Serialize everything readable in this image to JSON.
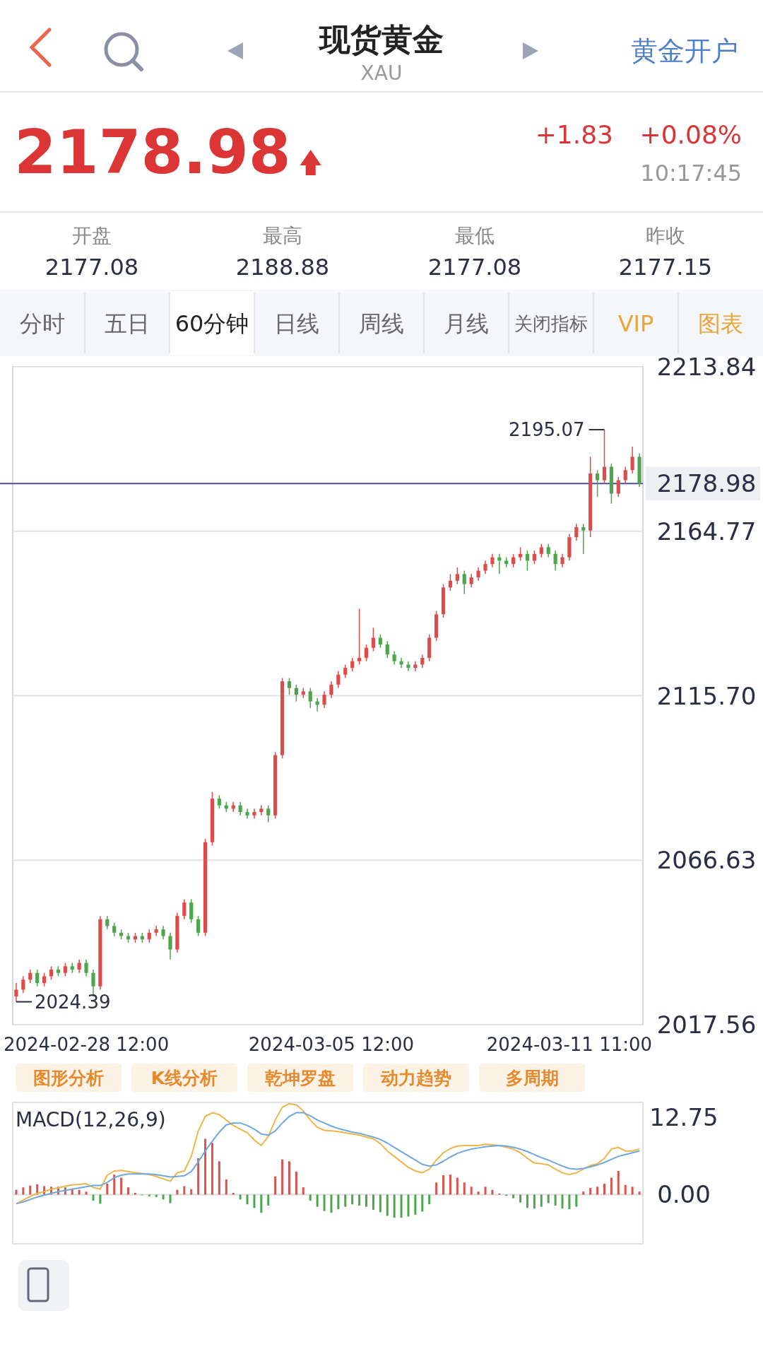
{
  "chart_data": [
    {
      "type": "other",
      "title": "现货黄金",
      "subtitle": "XAU",
      "annotations": [
        "黄金开户",
        "2178.98",
        "+1.83",
        "+0.08%",
        "10:17:45",
        "开盘",
        "2177.08",
        "最高",
        "2188.88",
        "最低",
        "2177.08",
        "昨收",
        "2177.15",
        "分时",
        "五日",
        "60分钟",
        "日线",
        "周线",
        "月线",
        "关闭指标",
        "VIP",
        "图表",
        "图形分析",
        "K线分析",
        "乾坤罗盘",
        "动力趋势",
        "多周期"
      ]
    },
    {
      "type": "candlestick",
      "categories": [
        null,
        null,
        null,
        null,
        null,
        null,
        null,
        null,
        null,
        null,
        "2024-02-28 12:00",
        null,
        null,
        null,
        null,
        null,
        null,
        null,
        null,
        null,
        null,
        null,
        null,
        null,
        null,
        null,
        null,
        null,
        null,
        null,
        null,
        null,
        null,
        null,
        null,
        null,
        null,
        null,
        null,
        null,
        null,
        null,
        null,
        null,
        null,
        "2024-03-05 12:00",
        null,
        null,
        null,
        null,
        null,
        null,
        null,
        null,
        null,
        null,
        null,
        null,
        null,
        null,
        null,
        null,
        null,
        null,
        null,
        null,
        null,
        null,
        null,
        null,
        null,
        null,
        null,
        null,
        null,
        null,
        null,
        null,
        null,
        "2024-03-11 11:00",
        null,
        null,
        null,
        null,
        null,
        null,
        null,
        null,
        null,
        null
      ],
      "ohlc": [
        [
          2026,
          2030,
          2024.39,
          2028
        ],
        [
          2028,
          2032,
          2027,
          2031
        ],
        [
          2031,
          2034,
          2030,
          2033
        ],
        [
          2033,
          2034,
          2029,
          2030
        ],
        [
          2030,
          2033,
          2029,
          2032
        ],
        [
          2032,
          2035,
          2031,
          2034
        ],
        [
          2034,
          2035,
          2032,
          2033
        ],
        [
          2033,
          2036,
          2032,
          2035
        ],
        [
          2035,
          2036,
          2033,
          2034
        ],
        [
          2034,
          2037,
          2033,
          2036
        ],
        [
          2036,
          2037,
          2032,
          2033
        ],
        [
          2033,
          2034,
          2026,
          2029
        ],
        [
          2029,
          2050,
          2028,
          2049
        ],
        [
          2049,
          2050,
          2046,
          2047
        ],
        [
          2047,
          2048,
          2044,
          2045
        ],
        [
          2045,
          2046,
          2043,
          2044
        ],
        [
          2044,
          2045,
          2042,
          2043
        ],
        [
          2043,
          2045,
          2042,
          2044
        ],
        [
          2044,
          2045,
          2042,
          2043
        ],
        [
          2043,
          2046,
          2042,
          2045
        ],
        [
          2045,
          2047,
          2044,
          2046
        ],
        [
          2046,
          2047,
          2043,
          2044
        ],
        [
          2044,
          2045,
          2037,
          2040
        ],
        [
          2040,
          2051,
          2039,
          2050
        ],
        [
          2050,
          2055,
          2049,
          2054
        ],
        [
          2054,
          2055,
          2048,
          2049
        ],
        [
          2049,
          2050,
          2044,
          2045
        ],
        [
          2045,
          2073,
          2044,
          2072
        ],
        [
          2072,
          2087,
          2071,
          2085
        ],
        [
          2085,
          2086,
          2082,
          2083
        ],
        [
          2083,
          2084,
          2081,
          2082
        ],
        [
          2082,
          2084,
          2081,
          2083
        ],
        [
          2083,
          2084,
          2080,
          2081
        ],
        [
          2081,
          2082,
          2079,
          2080
        ],
        [
          2080,
          2082,
          2079,
          2081
        ],
        [
          2081,
          2083,
          2080,
          2082
        ],
        [
          2082,
          2083,
          2078,
          2080
        ],
        [
          2080,
          2099,
          2079,
          2098
        ],
        [
          2098,
          2121,
          2097,
          2120
        ],
        [
          2120,
          2121,
          2116,
          2118
        ],
        [
          2118,
          2119,
          2114,
          2116
        ],
        [
          2116,
          2118,
          2115,
          2117
        ],
        [
          2117,
          2118,
          2112,
          2114
        ],
        [
          2114,
          2115,
          2111,
          2113
        ],
        [
          2113,
          2117,
          2112,
          2116
        ],
        [
          2116,
          2120,
          2115,
          2119
        ],
        [
          2119,
          2123,
          2118,
          2122
        ],
        [
          2122,
          2125,
          2121,
          2124
        ],
        [
          2124,
          2127,
          2123,
          2126
        ],
        [
          2126,
          2141.7,
          2125,
          2127
        ],
        [
          2127,
          2131,
          2126,
          2130
        ],
        [
          2130,
          2136,
          2129,
          2133
        ],
        [
          2133,
          2134,
          2130,
          2131
        ],
        [
          2131,
          2132,
          2127,
          2128
        ],
        [
          2128,
          2129,
          2125,
          2126
        ],
        [
          2126,
          2127,
          2124,
          2125
        ],
        [
          2125,
          2126,
          2123,
          2124
        ],
        [
          2124,
          2126,
          2123,
          2125
        ],
        [
          2125,
          2128,
          2124,
          2127
        ],
        [
          2127,
          2134,
          2126,
          2133
        ],
        [
          2133,
          2141,
          2132,
          2140
        ],
        [
          2140,
          2149,
          2139,
          2148
        ],
        [
          2148,
          2152,
          2147,
          2150
        ],
        [
          2150,
          2154,
          2149,
          2152
        ],
        [
          2152,
          2153,
          2146,
          2149
        ],
        [
          2149,
          2152,
          2148,
          2151
        ],
        [
          2151,
          2154,
          2150,
          2153
        ],
        [
          2153,
          2156,
          2152,
          2155
        ],
        [
          2155,
          2158,
          2154,
          2157
        ],
        [
          2157,
          2158,
          2152,
          2156
        ],
        [
          2156,
          2157,
          2154,
          2155
        ],
        [
          2155,
          2158,
          2154,
          2157
        ],
        [
          2157,
          2160,
          2156,
          2158
        ],
        [
          2158,
          2159,
          2153,
          2156
        ],
        [
          2156,
          2159,
          2155,
          2158
        ],
        [
          2158,
          2161,
          2157,
          2160
        ],
        [
          2160,
          2161,
          2157,
          2158
        ],
        [
          2158,
          2159,
          2153,
          2155
        ],
        [
          2155,
          2158,
          2154,
          2157
        ],
        [
          2157,
          2164,
          2156,
          2163
        ],
        [
          2163,
          2167,
          2162,
          2166
        ],
        [
          2166,
          2167,
          2158,
          2165
        ],
        [
          2165,
          2187,
          2163,
          2182
        ],
        [
          2182,
          2183,
          2175,
          2180
        ],
        [
          2180,
          2195.07,
          2179,
          2184
        ],
        [
          2184,
          2185,
          2173,
          2176
        ],
        [
          2176,
          2181,
          2175,
          2180
        ],
        [
          2180,
          2184,
          2179,
          2183
        ],
        [
          2183,
          2190,
          2182,
          2187
        ],
        [
          2187,
          2188,
          2178,
          2178.98
        ]
      ],
      "colors": [
        "#dd4b4b",
        "#dd4b4b",
        "#dd4b4b",
        "#4ca64c",
        "#dd4b4b",
        "#dd4b4b",
        "#4ca64c",
        "#dd4b4b",
        "#4ca64c",
        "#dd4b4b",
        "#4ca64c",
        "#4ca64c",
        "#dd4b4b",
        "#4ca64c",
        "#4ca64c",
        "#4ca64c",
        "#4ca64c",
        "#dd4b4b",
        "#4ca64c",
        "#dd4b4b",
        "#dd4b4b",
        "#4ca64c",
        "#4ca64c",
        "#dd4b4b",
        "#dd4b4b",
        "#4ca64c",
        "#4ca64c",
        "#dd4b4b",
        "#dd4b4b",
        "#4ca64c",
        "#4ca64c",
        "#dd4b4b",
        "#4ca64c",
        "#4ca64c",
        "#dd4b4b",
        "#dd4b4b",
        "#4ca64c",
        "#dd4b4b",
        "#dd4b4b",
        "#4ca64c",
        "#4ca64c",
        "#dd4b4b",
        "#4ca64c",
        "#4ca64c",
        "#dd4b4b",
        "#dd4b4b",
        "#dd4b4b",
        "#dd4b4b",
        "#dd4b4b",
        "#dd4b4b",
        "#dd4b4b",
        "#dd4b4b",
        "#4ca64c",
        "#4ca64c",
        "#4ca64c",
        "#4ca64c",
        "#4ca64c",
        "#dd4b4b",
        "#dd4b4b",
        "#dd4b4b",
        "#dd4b4b",
        "#dd4b4b",
        "#dd4b4b",
        "#dd4b4b",
        "#4ca64c",
        "#dd4b4b",
        "#dd4b4b",
        "#dd4b4b",
        "#dd4b4b",
        "#4ca64c",
        "#4ca64c",
        "#dd4b4b",
        "#dd4b4b",
        "#4ca64c",
        "#dd4b4b",
        "#dd4b4b",
        "#4ca64c",
        "#4ca64c",
        "#dd4b4b",
        "#dd4b4b",
        "#dd4b4b",
        "#4ca64c",
        "#dd4b4b",
        "#4ca64c",
        "#dd4b4b",
        "#4ca64c",
        "#dd4b4b",
        "#dd4b4b",
        "#dd4b4b",
        "#4ca64c"
      ],
      "ylim": [
        2017.56,
        2213.84
      ],
      "yticks": [
        {
          "value": 2017.56,
          "label": "2017.56"
        },
        2066.63,
        {
          "value": 2115.7,
          "label": "2115.70"
        },
        2164.77,
        2213.84
      ],
      "grid": "y",
      "ref_lines": [
        {
          "axis": "y",
          "value": 2178.98,
          "label": "2178.98",
          "color": "#4b4f9a"
        }
      ],
      "annotations": [
        "2195.07",
        "2024.39"
      ]
    },
    {
      "type": "bar",
      "title": "MACD(12,26,9)",
      "categories": [
        null,
        null,
        null,
        null,
        null,
        null,
        null,
        null,
        null,
        null,
        null,
        null,
        null,
        null,
        null,
        null,
        null,
        null,
        null,
        null,
        null,
        null,
        null,
        null,
        null,
        null,
        null,
        null,
        null,
        null,
        null,
        null,
        null,
        null,
        null,
        null,
        null,
        null,
        null,
        null,
        null,
        null,
        null,
        null,
        null,
        null,
        null,
        null,
        null,
        null,
        null,
        null,
        null,
        null,
        null,
        null,
        null,
        null,
        null,
        null,
        null,
        null,
        null,
        null,
        null,
        null,
        null,
        null,
        null,
        null,
        null,
        null,
        null,
        null,
        null,
        null,
        null,
        null,
        null,
        null,
        null,
        null,
        null,
        null,
        null,
        null,
        null,
        null,
        null,
        null
      ],
      "ylim": [
        -8.1,
        15.2
      ],
      "yticks": [
        {
          "value": 0,
          "label": "0.00"
        },
        12.75
      ],
      "tick_labels": "y",
      "ref_lines": [
        {
          "axis": "y",
          "value": 0,
          "color": "#dddddd"
        }
      ],
      "series": [
        {
          "type": "bar",
          "values": [
            0.8,
            1.2,
            1.5,
            1.7,
            1.4,
            1.3,
            1.3,
            1.2,
            1.0,
            0.8,
            0.5,
            -1.0,
            -1.5,
            1.8,
            3.3,
            2.8,
            1.2,
            0.3,
            -0.1,
            -0.3,
            -0.4,
            -0.8,
            -1.4,
            0.8,
            1.4,
            0.9,
            6.0,
            9.2,
            8.5,
            5.5,
            2.5,
            0.3,
            -0.8,
            -1.6,
            -2.2,
            -3.0,
            -1.8,
            3.0,
            5.8,
            5.5,
            3.8,
            1.2,
            -1.0,
            -2.0,
            -2.7,
            -3.0,
            -2.4,
            -2.0,
            -1.6,
            -1.8,
            -2.0,
            -2.5,
            -2.9,
            -3.5,
            -3.8,
            -3.8,
            -3.6,
            -3.3,
            -2.8,
            -1.6,
            2.0,
            3.2,
            3.3,
            2.8,
            2.0,
            1.3,
            0.5,
            1.3,
            0.8,
            0.2,
            -0.2,
            -0.6,
            -1.3,
            -2.2,
            -2.3,
            -2.0,
            -1.4,
            -1.8,
            -2.3,
            -2.4,
            -2.0,
            0.5,
            1.1,
            1.3,
            1.8,
            2.8,
            3.9,
            1.6,
            1.3,
            0.5
          ],
          "colors": [
            "#d9534f",
            "#d9534f",
            "#d9534f",
            "#d9534f",
            "#d9534f",
            "#d9534f",
            "#d9534f",
            "#d9534f",
            "#d9534f",
            "#d9534f",
            "#d9534f",
            "#4ca64c",
            "#4ca64c",
            "#d9534f",
            "#d9534f",
            "#d9534f",
            "#d9534f",
            "#d9534f",
            "#4ca64c",
            "#4ca64c",
            "#4ca64c",
            "#4ca64c",
            "#4ca64c",
            "#d9534f",
            "#d9534f",
            "#d9534f",
            "#d9534f",
            "#d9534f",
            "#d9534f",
            "#d9534f",
            "#d9534f",
            "#d9534f",
            "#4ca64c",
            "#4ca64c",
            "#4ca64c",
            "#4ca64c",
            "#4ca64c",
            "#d9534f",
            "#d9534f",
            "#d9534f",
            "#d9534f",
            "#d9534f",
            "#4ca64c",
            "#4ca64c",
            "#4ca64c",
            "#4ca64c",
            "#4ca64c",
            "#4ca64c",
            "#4ca64c",
            "#4ca64c",
            "#4ca64c",
            "#4ca64c",
            "#4ca64c",
            "#4ca64c",
            "#4ca64c",
            "#4ca64c",
            "#4ca64c",
            "#4ca64c",
            "#4ca64c",
            "#4ca64c",
            "#d9534f",
            "#d9534f",
            "#d9534f",
            "#d9534f",
            "#d9534f",
            "#d9534f",
            "#d9534f",
            "#d9534f",
            "#d9534f",
            "#d9534f",
            "#4ca64c",
            "#4ca64c",
            "#4ca64c",
            "#4ca64c",
            "#4ca64c",
            "#4ca64c",
            "#4ca64c",
            "#4ca64c",
            "#4ca64c",
            "#4ca64c",
            "#4ca64c",
            "#d9534f",
            "#d9534f",
            "#d9534f",
            "#d9534f",
            "#d9534f",
            "#d9534f",
            "#d9534f",
            "#d9534f",
            "#d9534f"
          ]
        },
        {
          "type": "line",
          "color": "#efb54a",
          "values": [
            -1.5,
            -0.9,
            -0.3,
            0.2,
            0.5,
            0.9,
            1.1,
            1.4,
            1.6,
            1.7,
            1.8,
            1.2,
            0.9,
            3.2,
            3.9,
            4.0,
            3.8,
            3.6,
            3.5,
            3.3,
            3.0,
            2.6,
            2.2,
            3.6,
            3.9,
            6.3,
            10.5,
            12.9,
            13.5,
            13.2,
            12.3,
            11.4,
            10.8,
            10.2,
            9.0,
            8.1,
            9.6,
            12.3,
            14.4,
            15.0,
            14.8,
            13.8,
            12.3,
            11.1,
            10.6,
            10.5,
            10.4,
            10.2,
            10.0,
            9.8,
            9.5,
            9.2,
            8.4,
            7.2,
            6.3,
            5.4,
            4.5,
            3.9,
            3.6,
            4.2,
            5.7,
            6.9,
            7.6,
            8.0,
            8.1,
            8.1,
            8.1,
            8.3,
            8.2,
            8.1,
            7.8,
            7.5,
            6.9,
            6.0,
            5.2,
            5.1,
            4.9,
            4.2,
            3.6,
            3.3,
            3.6,
            4.2,
            4.8,
            5.1,
            6.0,
            7.5,
            7.8,
            7.2,
            7.2,
            7.5
          ]
        },
        {
          "type": "line",
          "color": "#6fa8dc",
          "values": [
            -1.5,
            -1.2,
            -0.8,
            -0.4,
            -0.1,
            0.2,
            0.5,
            0.7,
            0.9,
            1.1,
            1.3,
            1.5,
            1.5,
            2.0,
            2.8,
            3.2,
            3.4,
            3.4,
            3.4,
            3.4,
            3.3,
            3.1,
            2.9,
            3.0,
            3.1,
            3.8,
            5.4,
            7.2,
            8.8,
            10.3,
            11.5,
            11.8,
            11.8,
            11.4,
            10.8,
            10.0,
            9.8,
            10.5,
            11.8,
            12.9,
            13.5,
            13.5,
            13.0,
            12.3,
            11.8,
            11.3,
            10.9,
            10.6,
            10.3,
            10.1,
            9.8,
            9.5,
            9.1,
            8.5,
            7.8,
            7.1,
            6.4,
            5.7,
            5.0,
            4.7,
            4.9,
            5.5,
            6.2,
            6.8,
            7.2,
            7.5,
            7.7,
            7.9,
            8.0,
            8.1,
            8.0,
            7.8,
            7.5,
            7.1,
            6.6,
            6.1,
            5.7,
            5.2,
            4.7,
            4.3,
            4.2,
            4.3,
            4.6,
            4.9,
            5.3,
            5.8,
            6.3,
            6.6,
            6.9,
            7.2
          ]
        }
      ]
    }
  ]
}
